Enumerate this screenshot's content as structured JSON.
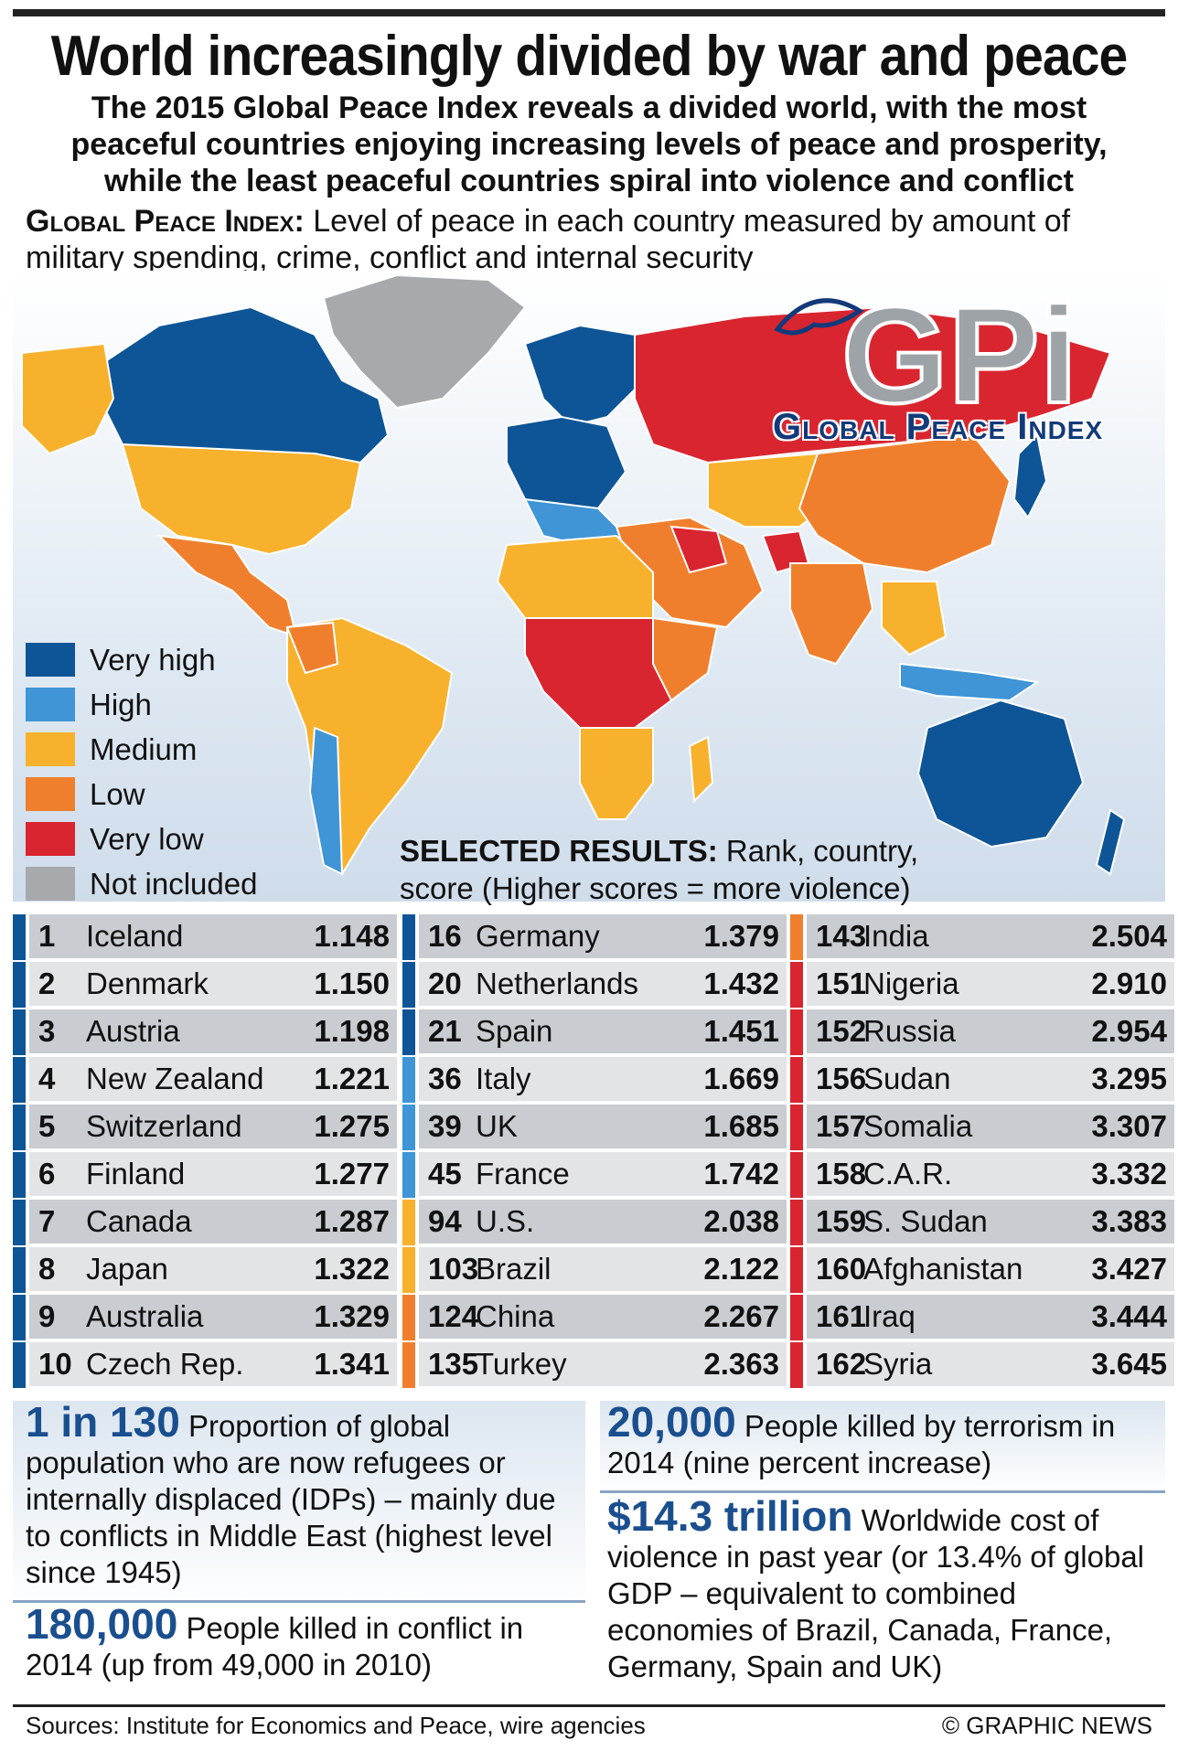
{
  "title": "World increasingly divided by war and peace",
  "subtitle": "The 2015 Global Peace Index reveals a divided world, with the most peaceful countries enjoying increasing levels of peace and prosperity, while the least peaceful countries spiral into violence and conflict",
  "gpi_heading": "Global Peace Index:",
  "gpi_description": " Level of peace in each country measured by amount of military spending, crime, conflict and internal security",
  "logo": {
    "mark": "GPi",
    "text": "Global Peace Index"
  },
  "colors": {
    "very_high": "#0d5596",
    "high": "#3f95d6",
    "medium": "#f8b12c",
    "low": "#f07f2d",
    "very_low": "#d9252f",
    "not_included": "#a7a9ac"
  },
  "legend": [
    {
      "label": "Very high",
      "color": "#0d5596"
    },
    {
      "label": "High",
      "color": "#3f95d6"
    },
    {
      "label": "Medium",
      "color": "#f8b12c"
    },
    {
      "label": "Low",
      "color": "#f07f2d"
    },
    {
      "label": "Very low",
      "color": "#d9252f"
    },
    {
      "label": "Not included",
      "color": "#a7a9ac"
    }
  ],
  "selected_heading": "SELECTED RESULTS:",
  "selected_caption": " Rank, country, score (Higher scores = more violence)",
  "results": [
    [
      {
        "rank": "1",
        "country": "Iceland",
        "score": "1.148",
        "color": "#0d5596"
      },
      {
        "rank": "2",
        "country": "Denmark",
        "score": "1.150",
        "color": "#0d5596"
      },
      {
        "rank": "3",
        "country": "Austria",
        "score": "1.198",
        "color": "#0d5596"
      },
      {
        "rank": "4",
        "country": "New Zealand",
        "score": "1.221",
        "color": "#0d5596"
      },
      {
        "rank": "5",
        "country": "Switzerland",
        "score": "1.275",
        "color": "#0d5596"
      },
      {
        "rank": "6",
        "country": "Finland",
        "score": "1.277",
        "color": "#0d5596"
      },
      {
        "rank": "7",
        "country": "Canada",
        "score": "1.287",
        "color": "#0d5596"
      },
      {
        "rank": "8",
        "country": "Japan",
        "score": "1.322",
        "color": "#0d5596"
      },
      {
        "rank": "9",
        "country": "Australia",
        "score": "1.329",
        "color": "#0d5596"
      },
      {
        "rank": "10",
        "country": "Czech Rep.",
        "score": "1.341",
        "color": "#0d5596"
      }
    ],
    [
      {
        "rank": "16",
        "country": "Germany",
        "score": "1.379",
        "color": "#0d5596"
      },
      {
        "rank": "20",
        "country": "Netherlands",
        "score": "1.432",
        "color": "#0d5596"
      },
      {
        "rank": "21",
        "country": "Spain",
        "score": "1.451",
        "color": "#0d5596"
      },
      {
        "rank": "36",
        "country": "Italy",
        "score": "1.669",
        "color": "#3f95d6"
      },
      {
        "rank": "39",
        "country": "UK",
        "score": "1.685",
        "color": "#3f95d6"
      },
      {
        "rank": "45",
        "country": "France",
        "score": "1.742",
        "color": "#3f95d6"
      },
      {
        "rank": "94",
        "country": "U.S.",
        "score": "2.038",
        "color": "#f8b12c"
      },
      {
        "rank": "103",
        "country": "Brazil",
        "score": "2.122",
        "color": "#f8b12c"
      },
      {
        "rank": "124",
        "country": "China",
        "score": "2.267",
        "color": "#f07f2d"
      },
      {
        "rank": "135",
        "country": "Turkey",
        "score": "2.363",
        "color": "#f07f2d"
      }
    ],
    [
      {
        "rank": "143",
        "country": "India",
        "score": "2.504",
        "color": "#f07f2d"
      },
      {
        "rank": "151",
        "country": "Nigeria",
        "score": "2.910",
        "color": "#d9252f"
      },
      {
        "rank": "152",
        "country": "Russia",
        "score": "2.954",
        "color": "#d9252f"
      },
      {
        "rank": "156",
        "country": "Sudan",
        "score": "3.295",
        "color": "#d9252f"
      },
      {
        "rank": "157",
        "country": "Somalia",
        "score": "3.307",
        "color": "#d9252f"
      },
      {
        "rank": "158",
        "country": "C.A.R.",
        "score": "3.332",
        "color": "#d9252f"
      },
      {
        "rank": "159",
        "country": "S. Sudan",
        "score": "3.383",
        "color": "#d9252f"
      },
      {
        "rank": "160",
        "country": "Afghanistan",
        "score": "3.427",
        "color": "#d9252f"
      },
      {
        "rank": "161",
        "country": "Iraq",
        "score": "3.444",
        "color": "#d9252f"
      },
      {
        "rank": "162",
        "country": "Syria",
        "score": "3.645",
        "color": "#d9252f"
      }
    ]
  ],
  "stats": {
    "refugees": {
      "value": "1 in 130",
      "text": " Proportion of global population who are now refugees or internally displaced (IDPs) – mainly due to conflicts in Middle East (highest level since 1945)"
    },
    "conflict": {
      "value": "180,000",
      "text": " People killed in conflict in 2014 (up from 49,000 in 2010)"
    },
    "terrorism": {
      "value": "20,000",
      "text": " People killed by terrorism in 2014 (nine percent increase)"
    },
    "cost": {
      "value": "$14.3 trillion",
      "text": " Worldwide cost of violence in past year (or 13.4% of global GDP – equivalent to combined economies of Brazil, Canada, France, Germany, Spain and UK)"
    }
  },
  "sources": "Sources: Institute for Economics and Peace, wire agencies",
  "credit": "© GRAPHIC NEWS"
}
